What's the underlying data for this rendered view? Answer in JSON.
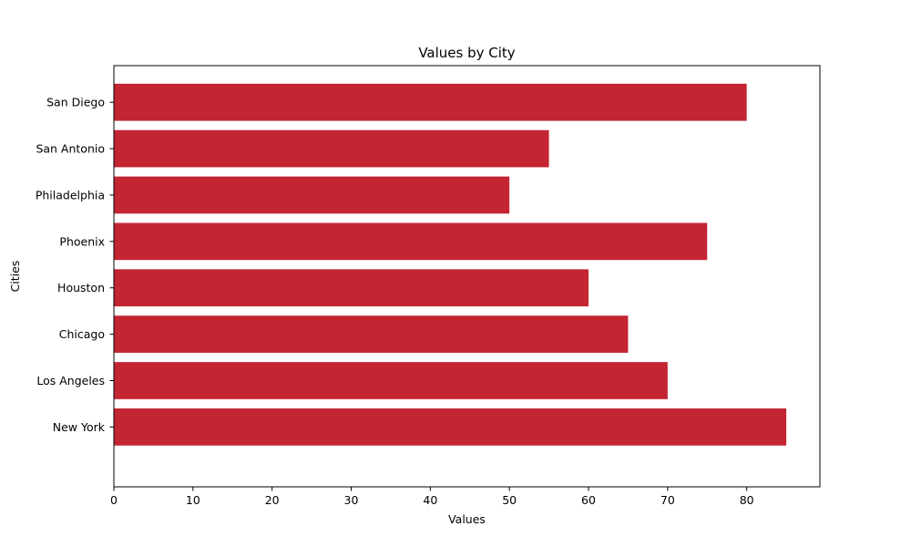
{
  "chart_data": {
    "type": "bar",
    "orientation": "horizontal",
    "title": "Values by City",
    "xlabel": "Values",
    "ylabel": "Cities",
    "categories": [
      "New York",
      "Los Angeles",
      "Chicago",
      "Houston",
      "Phoenix",
      "Philadelphia",
      "San Antonio",
      "San Diego"
    ],
    "values": [
      85,
      70,
      65,
      60,
      75,
      50,
      55,
      80
    ],
    "xlim": [
      0,
      89.25
    ],
    "xticks": [
      0,
      10,
      20,
      30,
      40,
      50,
      60,
      70,
      80
    ],
    "bar_color": "#c42533",
    "grid": false,
    "legend": "none"
  }
}
